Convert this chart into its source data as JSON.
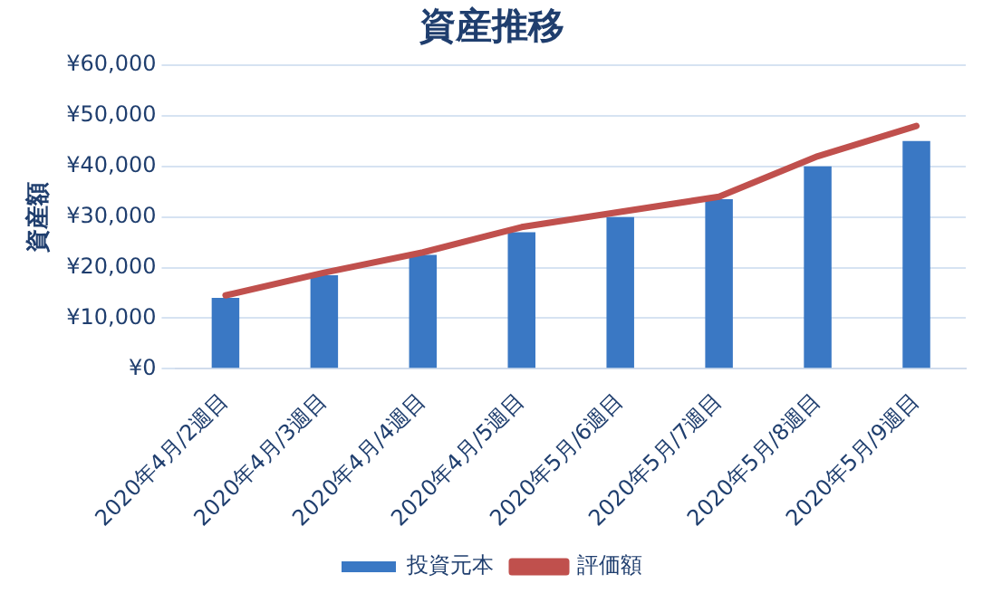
{
  "chart_data": {
    "type": "bar",
    "title": "資産推移",
    "ylabel": "資産額",
    "categories": [
      "2020年4月/2週目",
      "2020年4月/3週目",
      "2020年4月/4週目",
      "2020年4月/5週目",
      "2020年5月/6週目",
      "2020年5月/7週目",
      "2020年5月/8週目",
      "2020年5月/9週目"
    ],
    "series": [
      {
        "name": "投資元本",
        "color": "#3a78c4",
        "values": [
          14000,
          18500,
          22500,
          27000,
          30000,
          33500,
          40000,
          45000
        ]
      },
      {
        "name": "評価額",
        "type": "line",
        "color": "#c0504d",
        "values": [
          14500,
          19000,
          23000,
          28000,
          31000,
          34000,
          42000,
          48000
        ]
      }
    ],
    "ylim": [
      0,
      60000
    ],
    "yticks": [
      {
        "value": 0,
        "label": "¥0"
      },
      {
        "value": 10000,
        "label": "¥10,000"
      },
      {
        "value": 20000,
        "label": "¥20,000"
      },
      {
        "value": 30000,
        "label": "¥30,000"
      },
      {
        "value": 40000,
        "label": "¥40,000"
      },
      {
        "value": 50000,
        "label": "¥50,000"
      },
      {
        "value": 60000,
        "label": "¥60,000"
      }
    ],
    "grid": "y",
    "legend": "bottom",
    "marker": "none"
  }
}
